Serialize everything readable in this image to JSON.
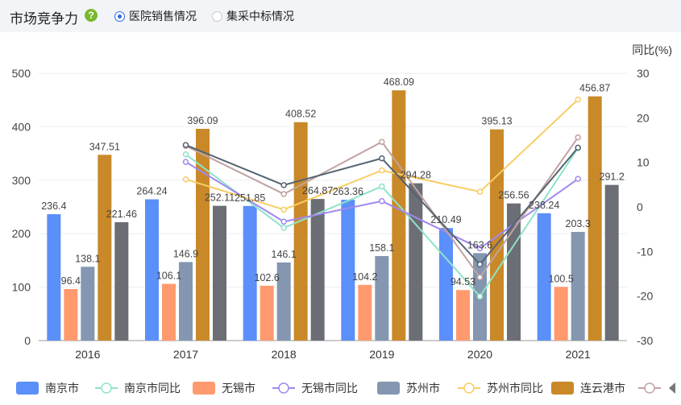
{
  "header": {
    "title": "市场竞争力",
    "help_icon": "?",
    "radio_options": [
      {
        "label": "医院销售情况",
        "selected": true
      },
      {
        "label": "集采中标情况",
        "selected": false
      }
    ]
  },
  "chart_data": {
    "type": "bar",
    "categories": [
      "2016",
      "2017",
      "2018",
      "2019",
      "2020",
      "2021"
    ],
    "ylim": [
      0,
      500
    ],
    "y2lim": [
      -30,
      30
    ],
    "y_ticks": [
      "0",
      "100",
      "200",
      "300",
      "400",
      "500"
    ],
    "y2_ticks": [
      "-30",
      "-20",
      "-10",
      "0",
      "10",
      "20",
      "30"
    ],
    "y2label": "同比(%)",
    "bar_series": [
      {
        "name": "南京市",
        "color": "#5b8ff9",
        "values": [
          236.4,
          264.24,
          251.85,
          263.36,
          210.49,
          238.24
        ],
        "labels": [
          "236.4",
          "264.24",
          "251.85",
          "263.36",
          "210.49",
          "238.24"
        ]
      },
      {
        "name": "无锡市",
        "color": "#ff9a6e",
        "values": [
          96.4,
          106.1,
          102.6,
          104.2,
          94.53,
          100.5
        ],
        "labels": [
          "96.4",
          "106.1",
          "102.6",
          "104.2",
          "94.53",
          "100.5"
        ]
      },
      {
        "name": "苏州市",
        "color": "#8496b0",
        "values": [
          138.1,
          146.9,
          146.1,
          158.1,
          163.6,
          203.3
        ],
        "labels": [
          "138.1",
          "146.9",
          "146.1",
          "158.1",
          "163.6",
          "203.3"
        ]
      },
      {
        "name": "连云港市",
        "color": "#c98929",
        "values": [
          347.51,
          396.09,
          408.52,
          468.09,
          395.13,
          456.87
        ],
        "labels": [
          "347.51",
          "396.09",
          "408.52",
          "468.09",
          "395.13",
          "456.87"
        ]
      },
      {
        "name": "",
        "color": "#6c6e75",
        "values": [
          221.46,
          252.11,
          264.87,
          294.28,
          256.56,
          291.2
        ],
        "labels": [
          "221.46",
          "252.11",
          "264.87",
          "294.28",
          "256.56",
          "291.2"
        ]
      }
    ],
    "line_series": [
      {
        "name": "南京市同比",
        "color": "#8ee3c8",
        "values": [
          null,
          11.8,
          -4.7,
          4.6,
          -20.1,
          13.2
        ]
      },
      {
        "name": "无锡市同比",
        "color": "#a187f0",
        "values": [
          null,
          10.1,
          -3.3,
          1.3,
          -9.3,
          6.3
        ]
      },
      {
        "name": "苏州市同比",
        "color": "#f8cd63",
        "values": [
          null,
          6.2,
          -0.6,
          8.2,
          3.4,
          24.1
        ]
      },
      {
        "name": "",
        "color": "#c0a3a0",
        "values": [
          null,
          13.7,
          2.9,
          14.6,
          -15.8,
          15.6
        ]
      },
      {
        "name": "",
        "color": "#546371",
        "values": [
          null,
          13.9,
          4.9,
          10.9,
          -12.9,
          13.3
        ]
      }
    ],
    "legend": [
      {
        "name": "南京市",
        "kind": "bar",
        "color": "#5b8ff9"
      },
      {
        "name": "南京市同比",
        "kind": "line",
        "color": "#8ee3c8"
      },
      {
        "name": "无锡市",
        "kind": "bar",
        "color": "#ff9a6e"
      },
      {
        "name": "无锡市同比",
        "kind": "line",
        "color": "#a187f0"
      },
      {
        "name": "苏州市",
        "kind": "bar",
        "color": "#8496b0"
      },
      {
        "name": "苏州市同比",
        "kind": "line",
        "color": "#f8cd63"
      },
      {
        "name": "连云港市",
        "kind": "bar",
        "color": "#c98929"
      },
      {
        "name": "",
        "kind": "line",
        "color": "#c0a3a0"
      }
    ],
    "grid": true,
    "legend_position": "bottom"
  }
}
